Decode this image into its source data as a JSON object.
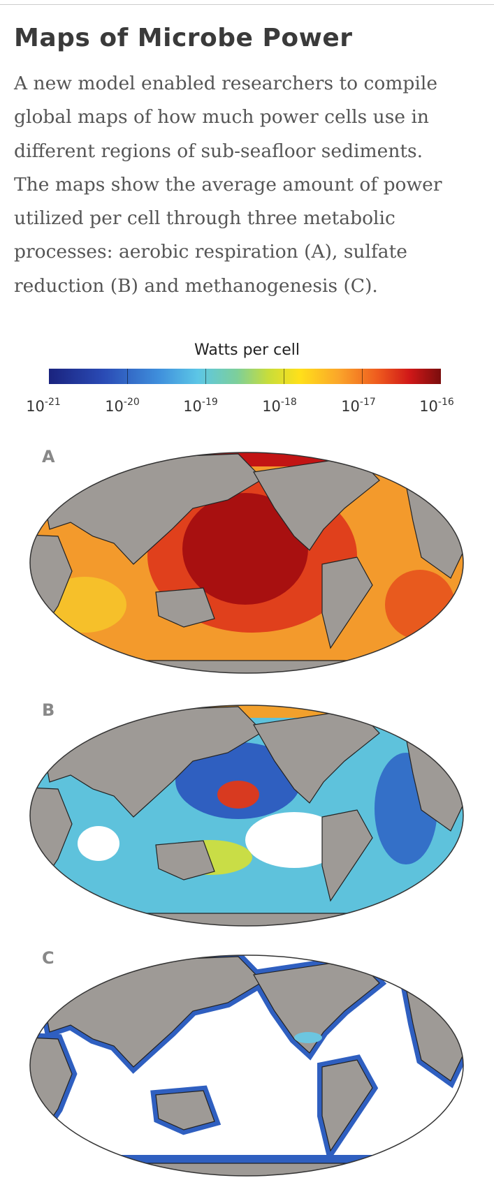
{
  "header": {
    "title": "Maps of Microbe Power"
  },
  "body": {
    "lines": [
      "A new model enabled researchers to compile",
      "global maps of how much power cells use in",
      "different regions of sub-seafloor sediments.",
      "The maps show the average amount of power",
      "utilized per cell through three metabolic",
      "processes: aerobic respiration (A), sulfate",
      "reduction (B) and methanogenesis (C)."
    ]
  },
  "colorbar": {
    "title": "Watts per cell",
    "ticks": [
      {
        "base": "10",
        "exponent": "-21"
      },
      {
        "base": "10",
        "exponent": "-20"
      },
      {
        "base": "10",
        "exponent": "-19"
      },
      {
        "base": "10",
        "exponent": "-18"
      },
      {
        "base": "10",
        "exponent": "-17"
      },
      {
        "base": "10",
        "exponent": "-16"
      }
    ]
  },
  "panels": [
    {
      "label": "A"
    },
    {
      "label": "B"
    },
    {
      "label": "C"
    }
  ]
}
